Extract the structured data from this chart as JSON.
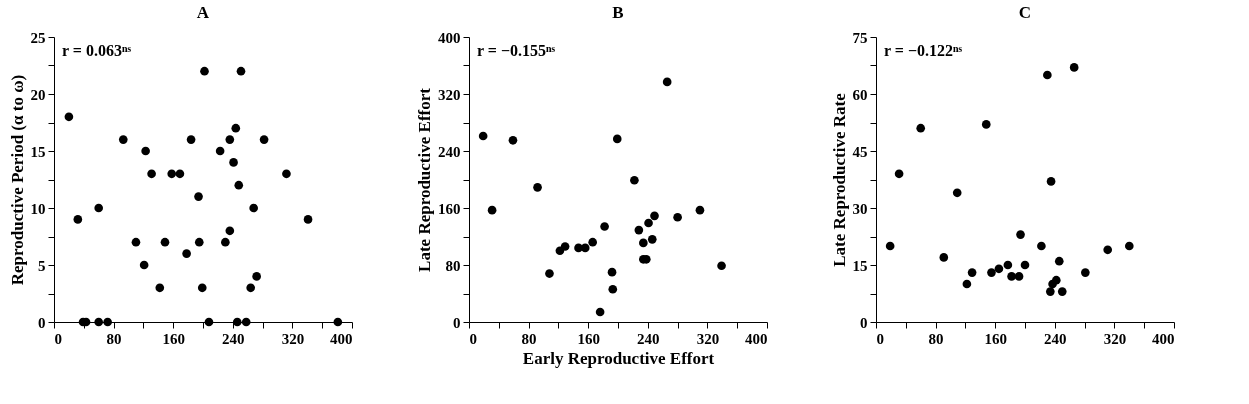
{
  "chart_data": [
    {
      "type": "scatter",
      "title": "A",
      "ylabel": "Reproductive Period (α to ω)",
      "annotations": [
        "r = 0.063ⁿˢ"
      ],
      "marker": "circle",
      "grid": false,
      "xlim": [
        0,
        400
      ],
      "xticks": [
        0,
        {
          "value": 40,
          "label": null
        },
        80,
        {
          "value": 120,
          "label": null
        },
        160,
        {
          "value": 200,
          "label": null
        },
        240,
        {
          "value": 280,
          "label": null
        },
        320,
        {
          "value": 360,
          "label": null
        },
        400
      ],
      "ylim": [
        0,
        25
      ],
      "yticks": [
        0,
        {
          "value": 2.5,
          "label": null
        },
        5,
        {
          "value": 7.5,
          "label": null
        },
        10,
        {
          "value": 12.5,
          "label": null
        },
        15,
        {
          "value": 17.5,
          "label": null
        },
        20,
        {
          "value": 22.5,
          "label": null
        },
        25
      ],
      "series": [
        {
          "color": "#000000",
          "x": [
            20,
            32,
            39,
            43,
            60,
            72,
            60,
            93,
            110,
            121,
            123,
            131,
            142,
            149,
            158,
            169,
            178,
            184,
            194,
            195,
            199,
            202,
            208,
            223,
            230,
            236,
            236,
            241,
            244,
            246,
            248,
            251,
            258,
            264,
            268,
            272,
            282,
            312,
            341,
            381
          ],
          "values": [
            18,
            9,
            0,
            0,
            0,
            0,
            10,
            16,
            7,
            5,
            15,
            13,
            3,
            7,
            13,
            13,
            6,
            16,
            11,
            7,
            3,
            22,
            0,
            15,
            7,
            8,
            16,
            14,
            17,
            0,
            12,
            22,
            0,
            3,
            10,
            4,
            16,
            13,
            9,
            0
          ]
        }
      ]
    },
    {
      "type": "scatter",
      "title": "B",
      "xlabel": "Early Reproductive Effort",
      "ylabel": "Late Reproductive Effort",
      "annotations": [
        "r = −0.155ⁿˢ"
      ],
      "marker": "circle",
      "grid": false,
      "xlim": [
        0,
        400
      ],
      "xticks": [
        0,
        {
          "value": 40,
          "label": null
        },
        80,
        {
          "value": 120,
          "label": null
        },
        160,
        {
          "value": 200,
          "label": null
        },
        240,
        {
          "value": 280,
          "label": null
        },
        320,
        {
          "value": 360,
          "label": null
        },
        400
      ],
      "ylim": [
        0,
        400
      ],
      "yticks": [
        0,
        {
          "value": 40,
          "label": null
        },
        80,
        {
          "value": 120,
          "label": null
        },
        160,
        {
          "value": 200,
          "label": null
        },
        240,
        {
          "value": 280,
          "label": null
        },
        320,
        {
          "value": 360,
          "label": null
        },
        400
      ],
      "series": [
        {
          "color": "#000000",
          "x": [
            19,
            31,
            59,
            92,
            108,
            122,
            129,
            147,
            156,
            166,
            176,
            182,
            192,
            193,
            199,
            222,
            228,
            234,
            234,
            238,
            241,
            246,
            249,
            266,
            280,
            310,
            339
          ],
          "values": [
            261,
            157,
            255,
            189,
            68,
            100,
            106,
            104,
            104,
            112,
            14,
            134,
            70,
            46,
            257,
            199,
            129,
            111,
            88,
            88,
            139,
            116,
            149,
            337,
            147,
            157,
            79
          ]
        }
      ]
    },
    {
      "type": "scatter",
      "title": "C",
      "ylabel": "Late Reproductive Rate",
      "annotations": [
        "r = −0.122ⁿˢ"
      ],
      "marker": "circle",
      "grid": false,
      "xlim": [
        0,
        400
      ],
      "xticks": [
        0,
        {
          "value": 40,
          "label": null
        },
        80,
        {
          "value": 120,
          "label": null
        },
        160,
        {
          "value": 200,
          "label": null
        },
        240,
        {
          "value": 280,
          "label": null
        },
        320,
        {
          "value": 360,
          "label": null
        },
        400
      ],
      "ylim": [
        0,
        75
      ],
      "yticks": [
        0,
        {
          "value": 7.5,
          "label": null
        },
        15,
        {
          "value": 22.5,
          "label": null
        },
        30,
        {
          "value": 37.5,
          "label": null
        },
        45,
        {
          "value": 52.5,
          "label": null
        },
        60,
        {
          "value": 67.5,
          "label": null
        },
        75
      ],
      "series": [
        {
          "color": "#000000",
          "x": [
            19,
            31,
            60,
            91,
            109,
            122,
            129,
            148,
            155,
            165,
            177,
            182,
            192,
            194,
            200,
            222,
            230,
            234,
            235,
            237,
            242,
            246,
            250,
            266,
            281,
            311,
            340
          ],
          "values": [
            20,
            39,
            51,
            17,
            34,
            10,
            13,
            52,
            13,
            14,
            15,
            12,
            12,
            23,
            15,
            20,
            65,
            8,
            37,
            10,
            11,
            16,
            8,
            67,
            13,
            19,
            20
          ]
        }
      ]
    }
  ]
}
